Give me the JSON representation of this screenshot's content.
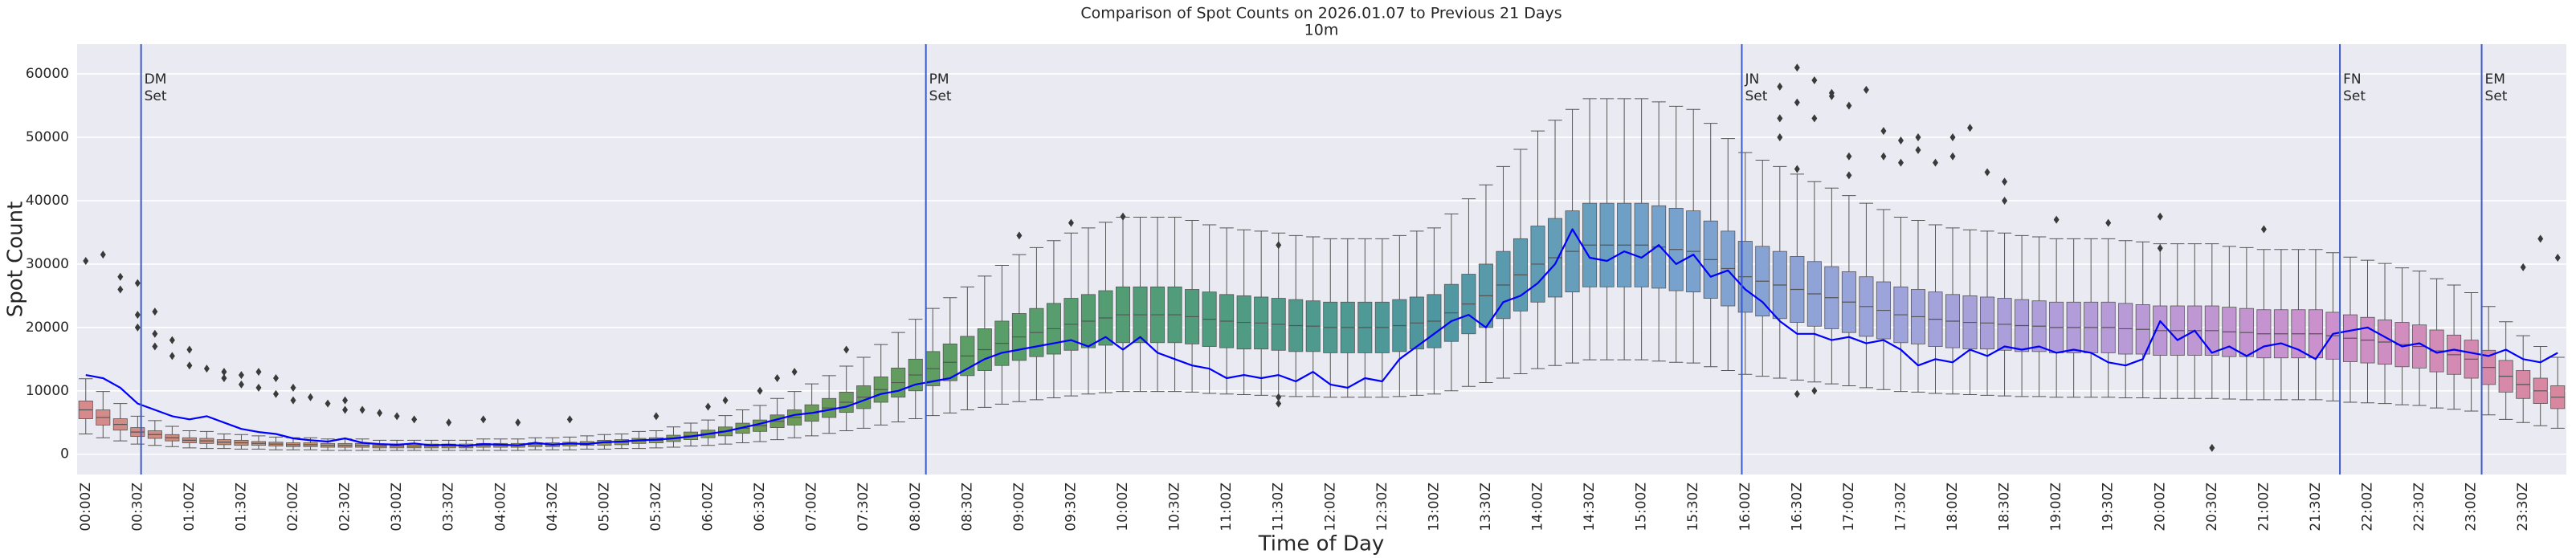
{
  "chart_data": {
    "type": "box",
    "title": "Comparison of Spot Counts on 2026.01.07 to Previous 21 Days",
    "subtitle": "10m",
    "xlabel": "Time of Day",
    "ylabel": "Spot Count",
    "ylim": [
      -3200,
      64700
    ],
    "yticks": [
      0,
      10000,
      20000,
      30000,
      40000,
      50000,
      60000
    ],
    "grid": true,
    "palette": [
      "#d68a8c",
      "#c5936f",
      "#9f9c5c",
      "#6f9a55",
      "#5a9e66",
      "#4f9c7e",
      "#4f97a0",
      "#74a2cc",
      "#9da4dc",
      "#b69bd8",
      "#cc90cc",
      "#d9879e"
    ],
    "box_edge_color": "#555555",
    "outlier_color": "#3a3a3a",
    "categories": [
      "00:00Z",
      null,
      null,
      "00:30Z",
      null,
      null,
      "01:00Z",
      null,
      null,
      "01:30Z",
      null,
      null,
      "02:00Z",
      null,
      null,
      "02:30Z",
      null,
      null,
      "03:00Z",
      null,
      null,
      "03:30Z",
      null,
      null,
      "04:00Z",
      null,
      null,
      "04:30Z",
      null,
      null,
      "05:00Z",
      null,
      null,
      "05:30Z",
      null,
      null,
      "06:00Z",
      null,
      null,
      "06:30Z",
      null,
      null,
      "07:00Z",
      null,
      null,
      "07:30Z",
      null,
      null,
      "08:00Z",
      null,
      null,
      "08:30Z",
      null,
      null,
      "09:00Z",
      null,
      null,
      "09:30Z",
      null,
      null,
      "10:00Z",
      null,
      null,
      "10:30Z",
      null,
      null,
      "11:00Z",
      null,
      null,
      "11:30Z",
      null,
      null,
      "12:00Z",
      null,
      null,
      "12:30Z",
      null,
      null,
      "13:00Z",
      null,
      null,
      "13:30Z",
      null,
      null,
      "14:00Z",
      null,
      null,
      "14:30Z",
      null,
      null,
      "15:00Z",
      null,
      null,
      "15:30Z",
      null,
      null,
      "16:00Z",
      null,
      null,
      "16:30Z",
      null,
      null,
      "17:00Z",
      null,
      null,
      "17:30Z",
      null,
      null,
      "18:00Z",
      null,
      null,
      "18:30Z",
      null,
      null,
      "19:00Z",
      null,
      null,
      "19:30Z",
      null,
      null,
      "20:00Z",
      null,
      null,
      "20:30Z",
      null,
      null,
      "21:00Z",
      null,
      null,
      "21:30Z",
      null,
      null,
      "22:00Z",
      null,
      null,
      "22:30Z",
      null,
      null,
      "23:00Z",
      null,
      null,
      "23:30Z",
      null,
      null
    ],
    "whislo": [
      3200,
      2600,
      2100,
      1600,
      1400,
      1200,
      1000,
      900,
      900,
      800,
      800,
      700,
      700,
      700,
      600,
      600,
      600,
      600,
      600,
      600,
      600,
      600,
      600,
      600,
      600,
      600,
      700,
      700,
      700,
      800,
      800,
      900,
      900,
      1000,
      1100,
      1300,
      1400,
      1600,
      1800,
      2000,
      2300,
      2600,
      2900,
      3300,
      3700,
      4100,
      4600,
      5100,
      5600,
      6100,
      6500,
      7000,
      7400,
      7900,
      8300,
      8600,
      8900,
      9200,
      9500,
      9700,
      9900,
      9900,
      9900,
      9900,
      9800,
      9600,
      9500,
      9400,
      9300,
      9200,
      9100,
      9100,
      9000,
      9000,
      9000,
      9000,
      9100,
      9300,
      9500,
      10000,
      10700,
      11300,
      12000,
      12700,
      13500,
      14000,
      14400,
      14900,
      14900,
      14900,
      14900,
      14700,
      14500,
      14400,
      13800,
      13200,
      12600,
      12300,
      12000,
      11700,
      11400,
      11100,
      10800,
      10500,
      10200,
      9900,
      9800,
      9600,
      9500,
      9400,
      9300,
      9200,
      9100,
      9100,
      9000,
      9000,
      9000,
      9000,
      8900,
      8900,
      8800,
      8800,
      8800,
      8800,
      8700,
      8600,
      8600,
      8600,
      8600,
      8600,
      8400,
      8200,
      8100,
      8000,
      7800,
      7700,
      7300,
      7100,
      6800,
      6200,
      5500,
      5000,
      4500,
      4100
    ],
    "q1": [
      5600,
      4600,
      3800,
      2800,
      2500,
      2100,
      1800,
      1700,
      1500,
      1400,
      1400,
      1300,
      1200,
      1200,
      1100,
      1100,
      1100,
      1000,
      1000,
      1000,
      1000,
      1000,
      1000,
      1100,
      1100,
      1100,
      1200,
      1200,
      1300,
      1400,
      1400,
      1500,
      1700,
      1800,
      2000,
      2300,
      2600,
      2900,
      3300,
      3600,
      4200,
      4600,
      5200,
      5800,
      6600,
      7200,
      8200,
      9000,
      10000,
      10800,
      11600,
      12400,
      13200,
      14000,
      14800,
      15400,
      15800,
      16400,
      16800,
      17200,
      17600,
      17600,
      17600,
      17600,
      17400,
      17000,
      16800,
      16600,
      16600,
      16400,
      16200,
      16200,
      16000,
      16000,
      16000,
      16000,
      16200,
      16600,
      16800,
      17800,
      19000,
      20000,
      21400,
      22600,
      24000,
      24800,
      25600,
      26400,
      26400,
      26400,
      26400,
      26200,
      25800,
      25600,
      24600,
      23400,
      22400,
      21800,
      21400,
      20800,
      20200,
      19800,
      19200,
      18600,
      18200,
      17600,
      17400,
      17000,
      16800,
      16600,
      16600,
      16400,
      16200,
      16200,
      16000,
      16000,
      16000,
      16000,
      15800,
      15800,
      15600,
      15600,
      15600,
      15600,
      15400,
      15400,
      15200,
      15200,
      15200,
      15200,
      15000,
      14600,
      14400,
      14200,
      13800,
      13600,
      13000,
      12600,
      12000,
      11000,
      9800,
      8800,
      8000,
      7200
    ],
    "median": [
      7000,
      5800,
      4700,
      3500,
      3100,
      2600,
      2200,
      2100,
      1900,
      1800,
      1700,
      1600,
      1500,
      1500,
      1400,
      1400,
      1400,
      1300,
      1300,
      1300,
      1300,
      1300,
      1300,
      1400,
      1400,
      1400,
      1500,
      1500,
      1600,
      1700,
      1800,
      1900,
      2100,
      2200,
      2500,
      2900,
      3200,
      3600,
      4100,
      4500,
      5200,
      5800,
      6500,
      7300,
      8200,
      9000,
      10200,
      11300,
      12500,
      13500,
      14500,
      15500,
      16500,
      17500,
      18500,
      19200,
      19800,
      20500,
      21000,
      21500,
      22000,
      22000,
      22000,
      22000,
      21700,
      21300,
      21000,
      20800,
      20700,
      20500,
      20300,
      20200,
      20000,
      20000,
      20000,
      20000,
      20300,
      20700,
      21000,
      22300,
      23700,
      25000,
      26700,
      28300,
      30000,
      31000,
      32000,
      33000,
      33000,
      33000,
      33000,
      32700,
      32300,
      32000,
      30700,
      29300,
      28000,
      27300,
      26700,
      26000,
      25300,
      24700,
      24000,
      23300,
      22700,
      22000,
      21700,
      21300,
      21000,
      20800,
      20700,
      20500,
      20300,
      20200,
      20000,
      20000,
      20000,
      20000,
      19800,
      19700,
      19500,
      19500,
      19500,
      19500,
      19300,
      19200,
      19000,
      19000,
      19000,
      19000,
      18700,
      18300,
      18000,
      17700,
      17300,
      17000,
      16300,
      15700,
      15000,
      13700,
      12300,
      11000,
      10000,
      9000
    ],
    "q3": [
      8400,
      7000,
      5600,
      4200,
      3700,
      3100,
      2600,
      2500,
      2300,
      2200,
      2000,
      1900,
      1800,
      1800,
      1700,
      1700,
      1700,
      1600,
      1600,
      1600,
      1600,
      1600,
      1600,
      1700,
      1700,
      1700,
      1800,
      1800,
      1900,
      2000,
      2200,
      2300,
      2500,
      2600,
      3000,
      3500,
      3800,
      4300,
      4900,
      5400,
      6200,
      7000,
      7800,
      8800,
      9800,
      10800,
      12200,
      13600,
      15000,
      16200,
      17400,
      18600,
      19800,
      21000,
      22200,
      23000,
      23800,
      24600,
      25200,
      25800,
      26400,
      26400,
      26400,
      26400,
      26000,
      25600,
      25200,
      25000,
      24800,
      24600,
      24400,
      24200,
      24000,
      24000,
      24000,
      24000,
      24400,
      24800,
      25200,
      26800,
      28400,
      30000,
      32000,
      34000,
      36000,
      37200,
      38400,
      39600,
      39600,
      39600,
      39600,
      39200,
      38800,
      38400,
      36800,
      35200,
      33600,
      32800,
      32000,
      31200,
      30400,
      29600,
      28800,
      28000,
      27200,
      26400,
      26000,
      25600,
      25200,
      25000,
      24800,
      24600,
      24400,
      24200,
      24000,
      24000,
      24000,
      24000,
      23800,
      23600,
      23400,
      23400,
      23400,
      23400,
      23200,
      23000,
      22800,
      22800,
      22800,
      22800,
      22400,
      22000,
      21600,
      21200,
      20800,
      20400,
      19600,
      18800,
      18000,
      16400,
      14800,
      13200,
      12000,
      10800
    ],
    "whishi": [
      11900,
      9900,
      8000,
      6000,
      5300,
      4400,
      3700,
      3600,
      3200,
      3100,
      2900,
      2700,
      2600,
      2600,
      2400,
      2400,
      2400,
      2200,
      2200,
      2200,
      2200,
      2200,
      2200,
      2400,
      2400,
      2400,
      2600,
      2600,
      2700,
      2900,
      3100,
      3200,
      3600,
      3700,
      4300,
      4900,
      5400,
      6100,
      7000,
      7700,
      8800,
      9900,
      11100,
      12400,
      13900,
      15300,
      17300,
      19200,
      21300,
      23000,
      24700,
      26400,
      28100,
      29800,
      31500,
      32600,
      33700,
      34900,
      35700,
      36600,
      37400,
      37400,
      37400,
      37400,
      36900,
      36200,
      35700,
      35400,
      35200,
      34900,
      34500,
      34300,
      34000,
      34000,
      34000,
      34000,
      34500,
      35200,
      35700,
      37900,
      40300,
      42500,
      45400,
      48100,
      51000,
      52700,
      54400,
      56100,
      56100,
      56100,
      56100,
      55600,
      54900,
      54400,
      52200,
      49800,
      47600,
      46400,
      45400,
      44200,
      43000,
      42000,
      40800,
      39600,
      38600,
      37400,
      36900,
      36200,
      35700,
      35400,
      35200,
      34900,
      34500,
      34300,
      34000,
      34000,
      34000,
      34000,
      33700,
      33500,
      33200,
      33200,
      33200,
      33200,
      32800,
      32600,
      32300,
      32300,
      32300,
      32300,
      31800,
      31100,
      30600,
      30100,
      29400,
      28900,
      27700,
      26700,
      25500,
      23300,
      20900,
      18700,
      17000,
      15300
    ],
    "outliers": {
      "x": [
        0,
        1,
        2,
        2,
        3,
        3,
        3,
        4,
        4,
        4,
        5,
        5,
        6,
        6,
        7,
        8,
        8,
        9,
        9,
        10,
        10,
        11,
        11,
        12,
        12,
        13,
        14,
        15,
        15,
        16,
        17,
        18,
        19,
        21,
        23,
        25,
        28,
        33,
        36,
        37,
        39,
        40,
        41,
        44,
        54,
        57,
        60,
        69,
        69,
        69,
        98,
        98,
        98,
        99,
        99,
        99,
        99,
        100,
        100,
        100,
        101,
        101,
        102,
        102,
        102,
        103,
        104,
        104,
        105,
        105,
        106,
        106,
        107,
        108,
        108,
        109,
        110,
        111,
        111,
        114,
        117,
        120,
        120,
        123,
        126,
        141,
        142,
        143
      ],
      "values": [
        30500,
        31500,
        28000,
        26000,
        27000,
        22000,
        20000,
        22500,
        19000,
        17000,
        18000,
        15500,
        16500,
        14000,
        13500,
        13000,
        12000,
        12500,
        11000,
        13000,
        10500,
        12000,
        9500,
        10500,
        8500,
        9000,
        8000,
        8500,
        7000,
        7000,
        6500,
        6000,
        5500,
        5000,
        5500,
        5000,
        5500,
        6000,
        7500,
        8500,
        10000,
        12000,
        13000,
        16500,
        34500,
        36500,
        37500,
        33000,
        9000,
        8000,
        58000,
        53000,
        50000,
        55500,
        61000,
        45000,
        9500,
        59000,
        53000,
        10000,
        57000,
        56500,
        55000,
        47000,
        44000,
        57500,
        51000,
        47000,
        49500,
        46000,
        50000,
        48000,
        46000,
        50000,
        47000,
        51500,
        44500,
        40000,
        43000,
        37000,
        36500,
        37500,
        32500,
        1000,
        35500,
        29500,
        34000,
        31000
      ]
    },
    "line": {
      "color": "#0000ff",
      "values": [
        12500,
        12000,
        10500,
        8000,
        7000,
        6000,
        5500,
        6000,
        5000,
        4000,
        3500,
        3200,
        2500,
        2200,
        2000,
        2500,
        1800,
        1600,
        1500,
        1700,
        1400,
        1500,
        1300,
        1600,
        1500,
        1400,
        1800,
        1500,
        1700,
        1600,
        1900,
        2000,
        2200,
        2300,
        2500,
        2800,
        3200,
        3600,
        4200,
        4800,
        5500,
        6200,
        6500,
        7000,
        7500,
        8500,
        9500,
        10000,
        11000,
        11500,
        12000,
        13500,
        15000,
        16000,
        16500,
        17000,
        17500,
        18000,
        17000,
        18500,
        16500,
        18500,
        16000,
        15000,
        14000,
        13500,
        12000,
        12500,
        12000,
        12500,
        11500,
        13000,
        11000,
        10500,
        12000,
        11500,
        15000,
        17000,
        19000,
        21000,
        22000,
        20000,
        24000,
        25000,
        27000,
        30000,
        35500,
        31000,
        30500,
        32000,
        31000,
        33000,
        30000,
        31500,
        28000,
        29000,
        26000,
        24000,
        21000,
        19000,
        19000,
        18000,
        18500,
        17500,
        18000,
        16500,
        14000,
        15000,
        14500,
        16500,
        15500,
        17000,
        16500,
        17000,
        16000,
        16500,
        16000,
        14500,
        14000,
        15000,
        21000,
        18000,
        19500,
        16000,
        17000,
        15500,
        17000,
        17500,
        16500,
        15000,
        19000,
        19500,
        20000,
        18500,
        17000,
        17500,
        16000,
        16500,
        16000,
        15500,
        16500,
        15000,
        14500,
        16000
      ]
    },
    "annotation_color": "#3b5cc6",
    "annotations": [
      {
        "x": 3.2,
        "lines": [
          "DM",
          "Set"
        ]
      },
      {
        "x": 48.6,
        "lines": [
          "PM",
          "Set"
        ]
      },
      {
        "x": 95.8,
        "lines": [
          "JN",
          "Set"
        ]
      },
      {
        "x": 130.4,
        "lines": [
          "FN",
          "Set"
        ]
      },
      {
        "x": 138.6,
        "lines": [
          "EM",
          "Set"
        ]
      }
    ]
  }
}
